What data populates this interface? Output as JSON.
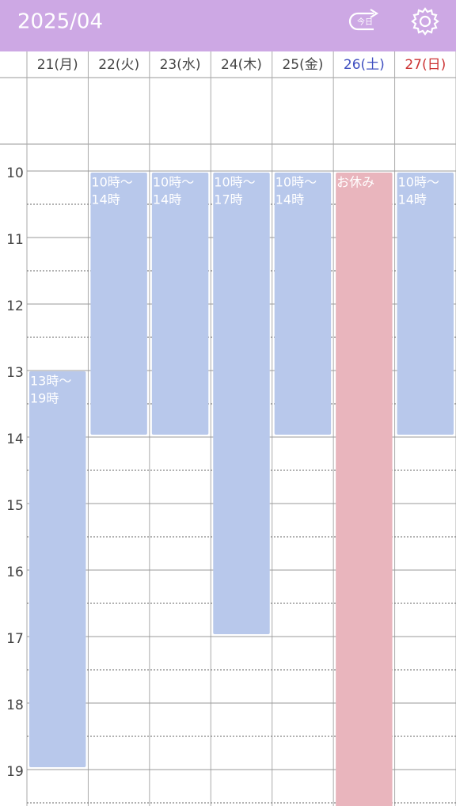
{
  "header": {
    "title": "2025/04",
    "today_button": "今日"
  },
  "days": [
    "21(月)",
    "22(火)",
    "23(水)",
    "24(木)",
    "25(金)",
    "26(土)",
    "27(日)"
  ],
  "hours": [
    "10",
    "11",
    "12",
    "13",
    "14",
    "15",
    "16",
    "17",
    "18",
    "19"
  ],
  "events": [
    {
      "lines": [
        "13時〜",
        "19時"
      ]
    },
    {
      "lines": [
        "10時〜",
        "14時"
      ]
    },
    {
      "lines": [
        "10時〜",
        "14時"
      ]
    },
    {
      "lines": [
        "10時〜",
        "17時"
      ]
    },
    {
      "lines": [
        "10時〜",
        "14時"
      ]
    },
    {
      "lines": [
        "お休み"
      ]
    },
    {
      "lines": [
        "10時〜",
        "14時"
      ]
    }
  ]
}
